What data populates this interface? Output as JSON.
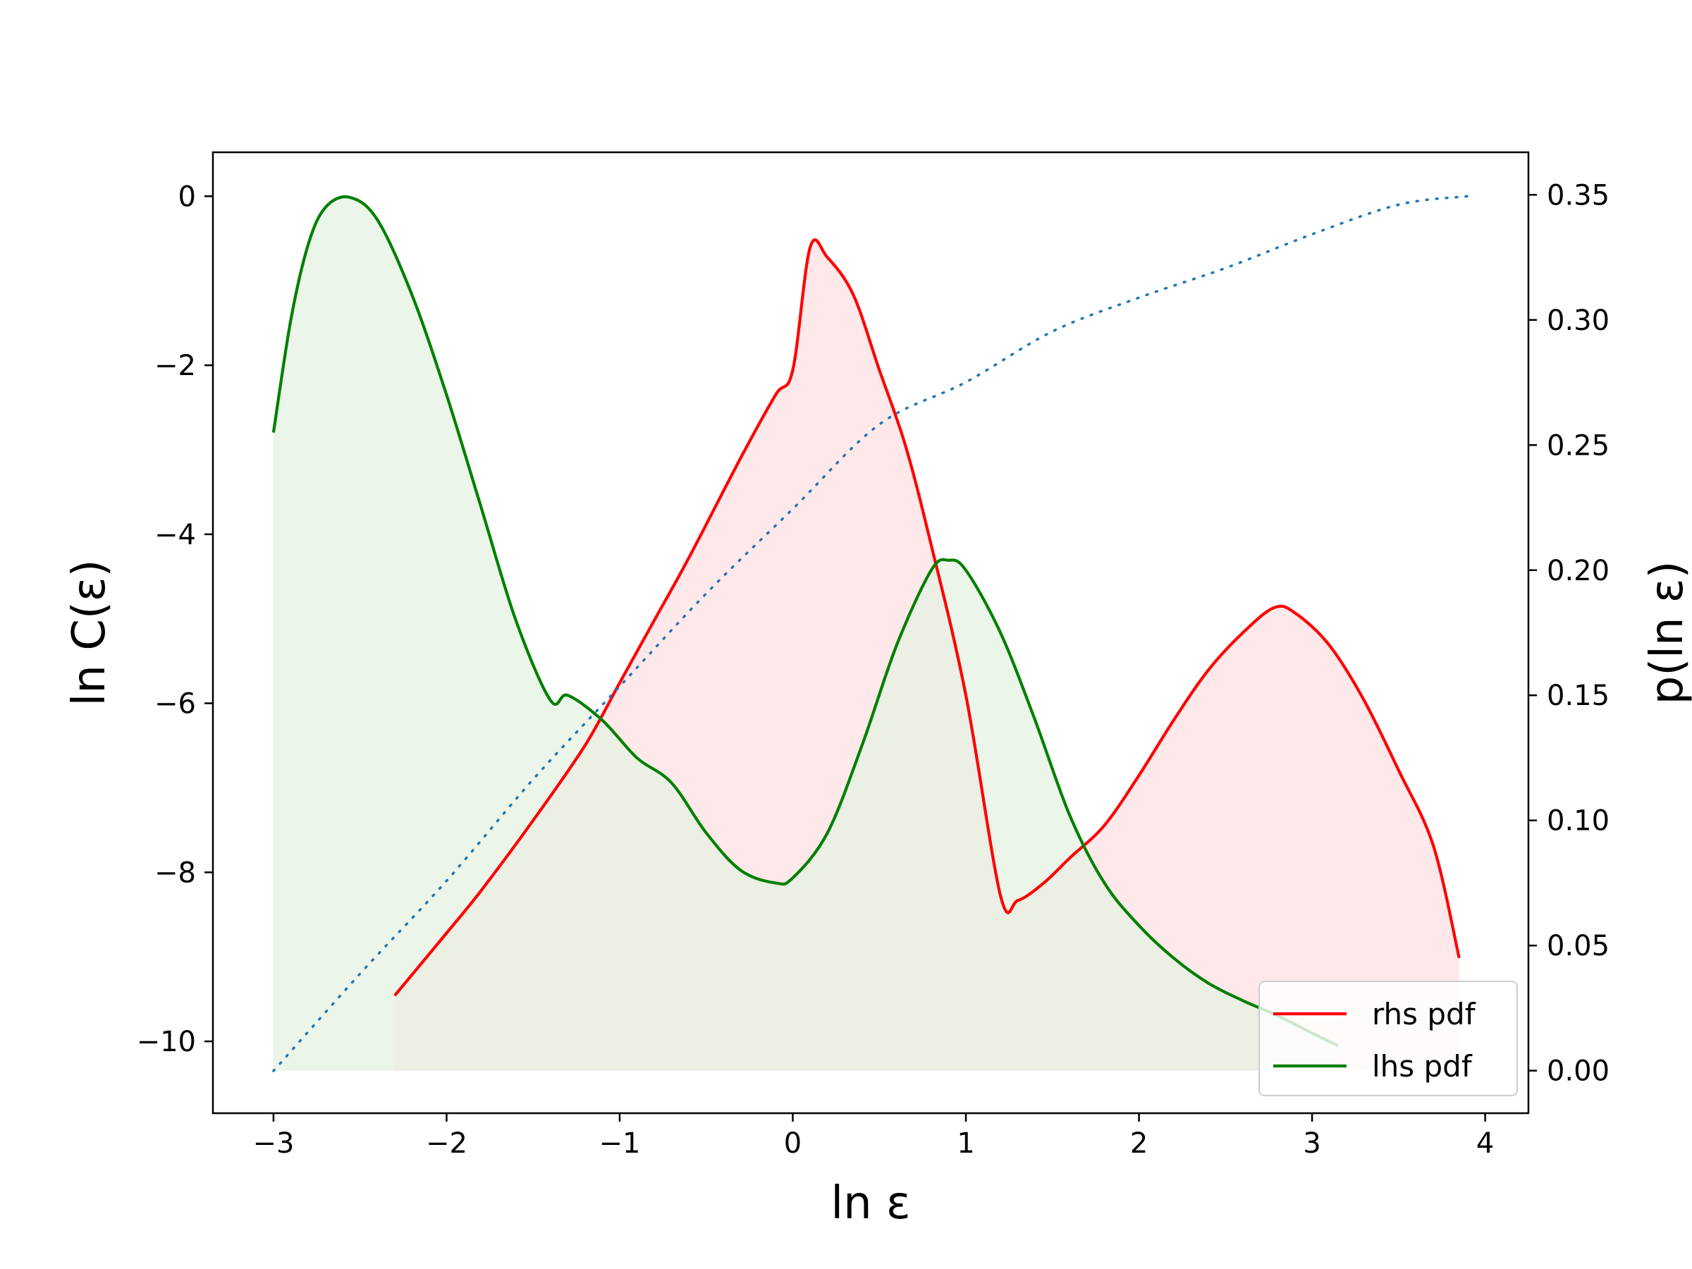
{
  "chart_data": {
    "type": "line",
    "title": "",
    "xlabel": "ln ε",
    "ylabel_left": "ln C(ε)",
    "ylabel_right": "p(ln ε)",
    "xlim": [
      -3.35,
      4.25
    ],
    "ylim_left": [
      -10.85,
      0.52
    ],
    "ylim_right": [
      -0.017,
      0.367
    ],
    "grid": false,
    "legend_position": "lower-right",
    "x_ticks": [
      {
        "value": -3,
        "label": "−3"
      },
      {
        "value": -2,
        "label": "−2"
      },
      {
        "value": -1,
        "label": "−1"
      },
      {
        "value": 0,
        "label": "0"
      },
      {
        "value": 1,
        "label": "1"
      },
      {
        "value": 2,
        "label": "2"
      },
      {
        "value": 3,
        "label": "3"
      },
      {
        "value": 4,
        "label": "4"
      }
    ],
    "y_left_ticks": [
      {
        "value": 0,
        "label": "0"
      },
      {
        "value": -2,
        "label": "−2"
      },
      {
        "value": -4,
        "label": "−4"
      },
      {
        "value": -6,
        "label": "−6"
      },
      {
        "value": -8,
        "label": "−8"
      },
      {
        "value": -10,
        "label": "−10"
      }
    ],
    "y_right_ticks": [
      {
        "value": 0.35,
        "label": "0.35"
      },
      {
        "value": 0.3,
        "label": "0.30"
      },
      {
        "value": 0.25,
        "label": "0.25"
      },
      {
        "value": 0.2,
        "label": "0.20"
      },
      {
        "value": 0.15,
        "label": "0.15"
      },
      {
        "value": 0.1,
        "label": "0.10"
      },
      {
        "value": 0.05,
        "label": "0.05"
      },
      {
        "value": 0.0,
        "label": "0.00"
      }
    ],
    "series": [
      {
        "name": "rhs pdf",
        "axis": "right",
        "color": "#ff0000",
        "fill": "#ffe0e2",
        "x": [
          -2.3,
          -2.0,
          -1.8,
          -1.5,
          -1.2,
          -1.0,
          -0.8,
          -0.6,
          -0.3,
          -0.1,
          0.0,
          0.1,
          0.2,
          0.35,
          0.5,
          0.65,
          0.8,
          1.0,
          1.2,
          1.3,
          1.45,
          1.6,
          1.8,
          2.0,
          2.2,
          2.4,
          2.6,
          2.78,
          2.9,
          3.1,
          3.3,
          3.5,
          3.7,
          3.85
        ],
        "y": [
          0.03,
          0.055,
          0.072,
          0.1,
          0.13,
          0.155,
          0.18,
          0.205,
          0.245,
          0.27,
          0.28,
          0.329,
          0.325,
          0.31,
          0.28,
          0.25,
          0.21,
          0.15,
          0.07,
          0.068,
          0.075,
          0.085,
          0.098,
          0.118,
          0.14,
          0.16,
          0.175,
          0.185,
          0.183,
          0.17,
          0.148,
          0.12,
          0.09,
          0.045
        ]
      },
      {
        "name": "lhs pdf",
        "axis": "right",
        "color": "#008000",
        "fill": "#e4f1e2",
        "x": [
          -3.0,
          -2.9,
          -2.8,
          -2.7,
          -2.56,
          -2.4,
          -2.2,
          -2.0,
          -1.8,
          -1.6,
          -1.4,
          -1.3,
          -1.1,
          -0.9,
          -0.7,
          -0.5,
          -0.3,
          -0.1,
          0.0,
          0.2,
          0.4,
          0.6,
          0.8,
          0.9,
          1.0,
          1.2,
          1.4,
          1.6,
          1.8,
          2.0,
          2.2,
          2.4,
          2.6,
          2.8,
          3.0,
          3.15
        ],
        "y": [
          0.255,
          0.3,
          0.33,
          0.345,
          0.349,
          0.34,
          0.31,
          0.27,
          0.225,
          0.18,
          0.148,
          0.15,
          0.14,
          0.125,
          0.115,
          0.095,
          0.08,
          0.075,
          0.077,
          0.095,
          0.13,
          0.17,
          0.2,
          0.204,
          0.2,
          0.175,
          0.14,
          0.102,
          0.075,
          0.058,
          0.045,
          0.035,
          0.028,
          0.022,
          0.015,
          0.01
        ]
      },
      {
        "name": "",
        "axis": "left",
        "color": "#1f77b4",
        "style": "dotted",
        "x": [
          -3.0,
          -2.5,
          -2.0,
          -1.5,
          -1.0,
          -0.5,
          0.0,
          0.5,
          1.0,
          1.5,
          2.0,
          2.5,
          3.0,
          3.5,
          3.9
        ],
        "y": [
          -10.35,
          -9.2,
          -8.1,
          -6.9,
          -5.8,
          -4.7,
          -3.7,
          -2.7,
          -2.2,
          -1.6,
          -1.2,
          -0.85,
          -0.45,
          -0.1,
          0.0
        ]
      }
    ]
  }
}
